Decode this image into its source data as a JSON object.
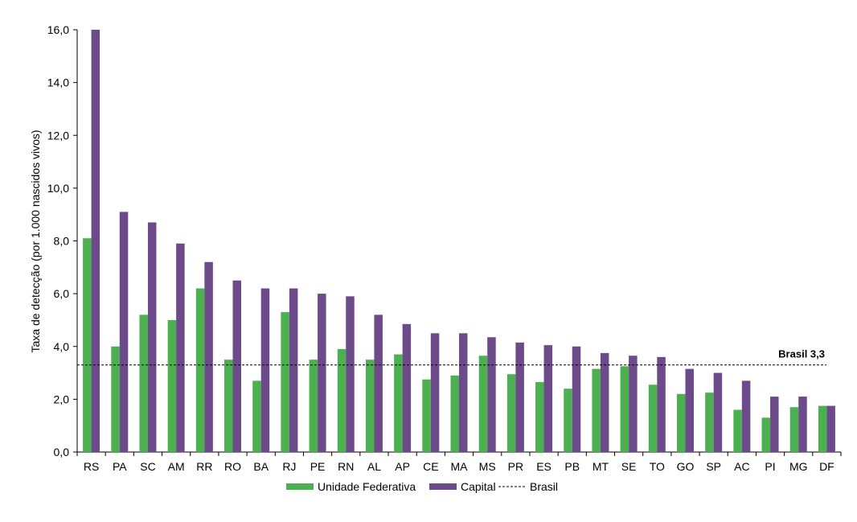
{
  "chart_data": {
    "type": "bar",
    "ylabel": "Taxa de detecção (por 1.000 nascidos vivos)",
    "ylim": [
      0,
      16
    ],
    "yticks": [
      "0,0",
      "2,0",
      "4,0",
      "6,0",
      "8,0",
      "10,0",
      "12,0",
      "14,0",
      "16,0"
    ],
    "categories": [
      "RS",
      "PA",
      "SC",
      "AM",
      "RR",
      "RO",
      "BA",
      "RJ",
      "PE",
      "RN",
      "AL",
      "AP",
      "CE",
      "MA",
      "MS",
      "PR",
      "ES",
      "PB",
      "MT",
      "SE",
      "TO",
      "GO",
      "SP",
      "AC",
      "PI",
      "MG",
      "DF"
    ],
    "series": [
      {
        "name": "Unidade Federativa",
        "color": "#4caf50",
        "values": [
          8.1,
          4.0,
          5.2,
          5.0,
          6.2,
          3.5,
          2.7,
          5.3,
          3.5,
          3.9,
          3.5,
          3.7,
          2.75,
          2.9,
          3.65,
          2.95,
          2.65,
          2.4,
          3.15,
          3.25,
          2.55,
          2.2,
          2.25,
          1.6,
          1.3,
          1.7,
          1.75
        ]
      },
      {
        "name": "Capital",
        "color": "#6d4a8a",
        "values": [
          16.0,
          9.1,
          8.7,
          7.9,
          7.2,
          6.5,
          6.2,
          6.2,
          6.0,
          5.9,
          5.2,
          4.85,
          4.5,
          4.5,
          4.35,
          4.15,
          4.05,
          4.0,
          3.75,
          3.65,
          3.6,
          3.15,
          3.0,
          2.7,
          2.1,
          2.1,
          1.75
        ]
      }
    ],
    "reference_line": {
      "name": "Brasil",
      "value": 3.3,
      "label": "Brasil 3,3",
      "style": "dashed"
    },
    "grid": false,
    "legend_position": "bottom"
  }
}
